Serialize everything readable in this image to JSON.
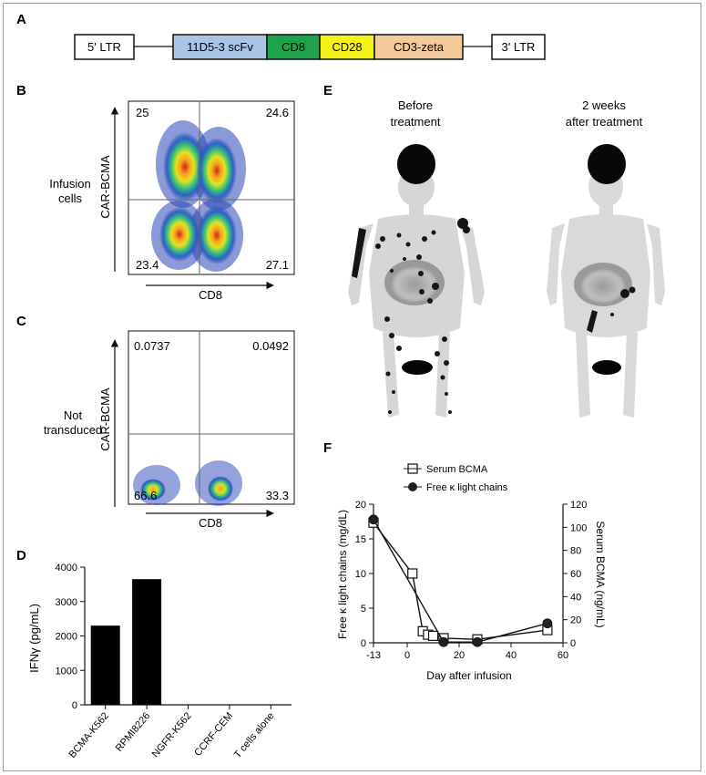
{
  "panels": {
    "A": {
      "label": "A",
      "segments": [
        {
          "text": "5' LTR",
          "color": "#ffffff"
        },
        {
          "text": "11D5-3 scFv",
          "color": "#a8c4e6"
        },
        {
          "text": "CD8",
          "color": "#1fa34a"
        },
        {
          "text": "CD28",
          "color": "#f7f21a"
        },
        {
          "text": "CD3-zeta",
          "color": "#f5c99a"
        },
        {
          "text": "3' LTR",
          "color": "#ffffff"
        }
      ]
    },
    "B": {
      "label": "B",
      "row_label": [
        "Infusion",
        "cells"
      ],
      "x_axis": "CD8",
      "y_axis": "CAR-BCMA",
      "quadrants": {
        "ul": "25",
        "ur": "24.6",
        "ll": "23.4",
        "lr": "27.1"
      }
    },
    "C": {
      "label": "C",
      "row_label": [
        "Not",
        "transduced"
      ],
      "x_axis": "CD8",
      "y_axis": "CAR-BCMA",
      "quadrants": {
        "ul": "0.0737",
        "ur": "0.0492",
        "ll": "66.6",
        "lr": "33.3"
      }
    },
    "D": {
      "label": "D",
      "y_axis": "IFNγ (pg/mL)"
    },
    "E": {
      "label": "E",
      "before": [
        "Before",
        "treatment"
      ],
      "after": [
        "2 weeks",
        "after treatment"
      ]
    },
    "F": {
      "label": "F",
      "legend": [
        "Serum BCMA",
        "Free κ light chains"
      ],
      "x_axis": "Day after infusion",
      "y_left": "Free κ light chains (mg/dL)",
      "y_right": "Serum BCMA (ng/mL)"
    }
  },
  "chart_data": [
    {
      "type": "bar",
      "panel": "D",
      "categories": [
        "BCMA-K562",
        "RPMI8226",
        "NGFR-K562",
        "CCRF-CEM",
        "T cells alone"
      ],
      "values": [
        2300,
        3650,
        0,
        0,
        0
      ],
      "ylabel": "IFNγ (pg/mL)",
      "ylim": [
        0,
        4000
      ],
      "yticks": [
        0,
        1000,
        2000,
        3000,
        4000
      ],
      "color": "#000000"
    },
    {
      "type": "line",
      "panel": "F",
      "xlabel": "Day after infusion",
      "xlim": [
        -13,
        60
      ],
      "xticks": [
        -13,
        0,
        20,
        40,
        60
      ],
      "y_left_lim": [
        0,
        20
      ],
      "y_left_ticks": [
        0,
        5,
        10,
        15,
        20
      ],
      "y_right_lim": [
        0,
        120
      ],
      "y_right_ticks": [
        0,
        20,
        40,
        60,
        80,
        100,
        120
      ],
      "series": [
        {
          "name": "Serum BCMA",
          "axis": "right",
          "marker": "square",
          "x": [
            -13,
            2,
            6,
            8,
            10,
            14,
            27,
            54
          ],
          "y": [
            104,
            60,
            10,
            7,
            6,
            4,
            3,
            11
          ]
        },
        {
          "name": "Free κ light chains",
          "axis": "left",
          "marker": "circle",
          "x": [
            -13,
            14,
            27,
            54
          ],
          "y": [
            17.8,
            0.1,
            0.1,
            2.8
          ]
        }
      ]
    }
  ]
}
